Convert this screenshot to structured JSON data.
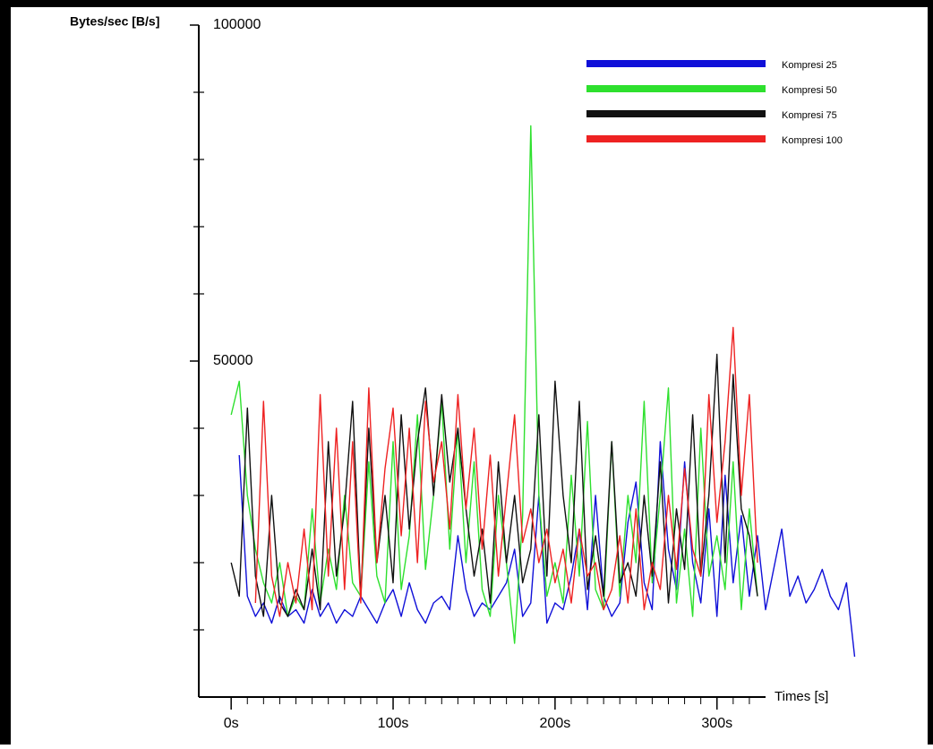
{
  "chart_data": {
    "type": "line",
    "y_axis_label": "Bytes/sec [B/s]",
    "x_axis_label": "Times [s]",
    "x": [
      0,
      5,
      10,
      15,
      20,
      25,
      30,
      35,
      40,
      45,
      50,
      55,
      60,
      65,
      70,
      75,
      80,
      85,
      90,
      95,
      100,
      105,
      110,
      115,
      120,
      125,
      130,
      135,
      140,
      145,
      150,
      155,
      160,
      165,
      170,
      175,
      180,
      185,
      190,
      195,
      200,
      205,
      210,
      215,
      220,
      225,
      230,
      235,
      240,
      245,
      250,
      255,
      260,
      265,
      270,
      275,
      280,
      285,
      290,
      295,
      300,
      305,
      310,
      315,
      320,
      325,
      330,
      335,
      340,
      345,
      350,
      355,
      360,
      365,
      370,
      375,
      380,
      385
    ],
    "xlim": [
      -20,
      330
    ],
    "ylim": [
      0,
      100000
    ],
    "yticks": [
      50000,
      100000
    ],
    "yticks_minor": [
      10000,
      20000,
      30000,
      40000,
      60000,
      70000,
      80000,
      90000
    ],
    "xticks": [
      {
        "value": 0,
        "label": "0s"
      },
      {
        "value": 100,
        "label": "100s"
      },
      {
        "value": 200,
        "label": "200s"
      },
      {
        "value": 300,
        "label": "300s"
      }
    ],
    "xticks_minor": [
      10,
      20,
      30,
      40,
      50,
      60,
      70,
      80,
      90,
      110,
      120,
      130,
      140,
      150,
      160,
      170,
      180,
      190,
      210,
      220,
      230,
      240,
      250,
      260,
      270,
      280,
      290,
      310,
      320
    ],
    "legend": "top-right",
    "series": [
      {
        "name": "Kompresi 25",
        "color": "#1010d8",
        "values": [
          null,
          36000,
          15000,
          12000,
          14000,
          11000,
          15000,
          12000,
          13000,
          11000,
          16000,
          12000,
          14000,
          11000,
          13000,
          12000,
          15000,
          13000,
          11000,
          14000,
          16000,
          12000,
          17000,
          13000,
          11000,
          14000,
          15000,
          13000,
          24000,
          16000,
          12000,
          14000,
          13000,
          15000,
          17000,
          22000,
          12000,
          14000,
          30000,
          11000,
          14000,
          13000,
          18000,
          25000,
          13000,
          30000,
          15000,
          12000,
          14000,
          26000,
          32000,
          17000,
          13000,
          38000,
          22000,
          16000,
          35000,
          20000,
          14000,
          28000,
          12000,
          33000,
          17000,
          27000,
          15000,
          24000,
          13000,
          19000,
          25000,
          15000,
          18000,
          14000,
          16000,
          19000,
          15000,
          13000,
          17000,
          6000
        ]
      },
      {
        "name": "Kompresi 50",
        "color": "#2ee02e",
        "values": [
          42000,
          47000,
          30000,
          22000,
          17000,
          14000,
          20000,
          12000,
          15000,
          13000,
          28000,
          14000,
          22000,
          16000,
          30000,
          17000,
          15000,
          35000,
          18000,
          14000,
          38000,
          16000,
          24000,
          42000,
          19000,
          30000,
          44000,
          22000,
          40000,
          20000,
          35000,
          16000,
          12000,
          30000,
          20000,
          8000,
          27000,
          85000,
          30000,
          15000,
          20000,
          14000,
          33000,
          18000,
          41000,
          16000,
          13000,
          38000,
          15000,
          30000,
          20000,
          44000,
          17000,
          30000,
          46000,
          14000,
          25000,
          12000,
          40000,
          18000,
          24000,
          16000,
          35000,
          13000,
          28000,
          15000,
          null,
          null,
          null,
          null,
          null,
          null,
          null,
          null,
          null,
          null,
          null,
          null
        ]
      },
      {
        "name": "Kompresi 75",
        "color": "#111111",
        "values": [
          20000,
          15000,
          43000,
          18000,
          12000,
          30000,
          14000,
          12000,
          16000,
          13000,
          22000,
          13000,
          38000,
          18000,
          28000,
          44000,
          15000,
          40000,
          20000,
          30000,
          17000,
          42000,
          25000,
          38000,
          46000,
          30000,
          45000,
          32000,
          40000,
          28000,
          18000,
          25000,
          14000,
          35000,
          20000,
          30000,
          17000,
          22000,
          42000,
          18000,
          47000,
          30000,
          20000,
          44000,
          16000,
          24000,
          15000,
          38000,
          17000,
          20000,
          15000,
          30000,
          18000,
          35000,
          14000,
          28000,
          19000,
          42000,
          18000,
          30000,
          51000,
          20000,
          48000,
          28000,
          24000,
          15000,
          null,
          null,
          null,
          null,
          null,
          null,
          null,
          null,
          null,
          null,
          null,
          null
        ]
      },
      {
        "name": "Kompresi 100",
        "color": "#ee2222",
        "values": [
          null,
          null,
          null,
          14000,
          44000,
          18000,
          12000,
          20000,
          14000,
          25000,
          13000,
          45000,
          18000,
          40000,
          16000,
          38000,
          14000,
          46000,
          20000,
          34000,
          43000,
          24000,
          40000,
          20000,
          44000,
          32000,
          38000,
          25000,
          45000,
          28000,
          40000,
          22000,
          36000,
          18000,
          30000,
          42000,
          23000,
          28000,
          20000,
          25000,
          17000,
          22000,
          14000,
          25000,
          18000,
          20000,
          13000,
          16000,
          24000,
          14000,
          28000,
          13000,
          20000,
          16000,
          30000,
          19000,
          34000,
          22000,
          18000,
          45000,
          26000,
          38000,
          55000,
          30000,
          45000,
          20000,
          null,
          null,
          null,
          null,
          null,
          null,
          null,
          null,
          null,
          null,
          null,
          null
        ]
      }
    ]
  }
}
